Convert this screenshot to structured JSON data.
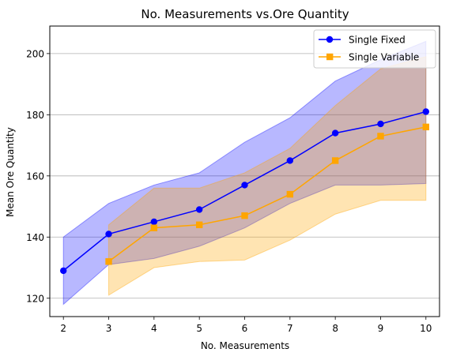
{
  "chart_data": {
    "type": "line",
    "title": "No. Measurements vs.Ore Quantity",
    "xlabel": "No. Measurements",
    "ylabel": "Mean Ore Quantity",
    "xlim": [
      1.7,
      10.3
    ],
    "ylim": [
      114,
      209
    ],
    "xticks": [
      2,
      3,
      4,
      5,
      6,
      7,
      8,
      9,
      10
    ],
    "yticks": [
      120,
      140,
      160,
      180,
      200
    ],
    "grid": {
      "horizontal": true,
      "vertical": false
    },
    "legend_position": "top-right",
    "series": [
      {
        "name": "Single Fixed",
        "color": "#0000ff",
        "marker": "circle",
        "x": [
          2,
          3,
          4,
          5,
          6,
          7,
          8,
          9,
          10
        ],
        "values": [
          129,
          141,
          145,
          149,
          157,
          165,
          174,
          177,
          181
        ],
        "band_upper": [
          140,
          151,
          157,
          161,
          171,
          179,
          191,
          198,
          204
        ],
        "band_lower": [
          118,
          131,
          133,
          137,
          143,
          151,
          157,
          157,
          157.5
        ],
        "band_color": "#0000ff",
        "band_opacity": 0.28
      },
      {
        "name": "Single Variable",
        "color": "#ffa500",
        "marker": "square",
        "x": [
          3,
          4,
          5,
          6,
          7,
          8,
          9,
          10
        ],
        "values": [
          132,
          143,
          144,
          147,
          154,
          165,
          173,
          176
        ],
        "band_upper": [
          144,
          156,
          156,
          161,
          169,
          183,
          195,
          199
        ],
        "band_lower": [
          121,
          130,
          132,
          132.5,
          139,
          147.5,
          152,
          152
        ],
        "band_color": "#ffa500",
        "band_opacity": 0.3
      }
    ]
  }
}
